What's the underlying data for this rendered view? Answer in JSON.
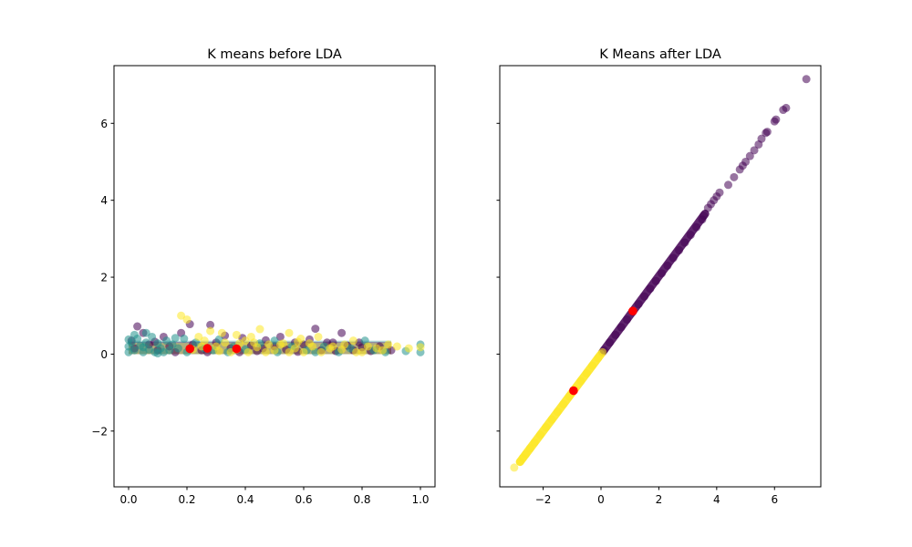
{
  "chart_data": [
    {
      "type": "scatter",
      "title": "K means before LDA",
      "xlabel": "",
      "ylabel": "",
      "xlim": [
        -0.05,
        1.05
      ],
      "ylim": [
        -3.45,
        7.5
      ],
      "xticks": [
        0.0,
        0.2,
        0.4,
        0.6,
        0.8,
        1.0
      ],
      "xtick_labels": [
        "0.0",
        "0.2",
        "0.4",
        "0.6",
        "0.8",
        "1.0"
      ],
      "yticks": [
        -2,
        0,
        2,
        4,
        6
      ],
      "ytick_labels": [
        "−2",
        "0",
        "2",
        "4",
        "6"
      ],
      "grid": false,
      "series": [
        {
          "color": "#440154",
          "values": [
            [
              0.03,
              0.72
            ],
            [
              0.21,
              0.78
            ],
            [
              0.28,
              0.76
            ],
            [
              0.64,
              0.66
            ],
            [
              0.05,
              0.55
            ],
            [
              0.12,
              0.45
            ],
            [
              0.18,
              0.55
            ],
            [
              0.33,
              0.48
            ],
            [
              0.39,
              0.42
            ],
            [
              0.47,
              0.36
            ],
            [
              0.52,
              0.45
            ],
            [
              0.57,
              0.3
            ],
            [
              0.62,
              0.38
            ],
            [
              0.7,
              0.3
            ],
            [
              0.73,
              0.55
            ],
            [
              0.75,
              0.22
            ],
            [
              0.8,
              0.18
            ],
            [
              0.86,
              0.2
            ],
            [
              0.02,
              0.15
            ],
            [
              0.07,
              0.25
            ],
            [
              0.1,
              0.1
            ],
            [
              0.14,
              0.2
            ],
            [
              0.16,
              0.05
            ],
            [
              0.22,
              0.25
            ],
            [
              0.25,
              0.1
            ],
            [
              0.3,
              0.3
            ],
            [
              0.35,
              0.15
            ],
            [
              0.42,
              0.22
            ],
            [
              0.44,
              0.08
            ],
            [
              0.5,
              0.2
            ],
            [
              0.54,
              0.12
            ],
            [
              0.6,
              0.25
            ],
            [
              0.66,
              0.1
            ],
            [
              0.68,
              0.3
            ],
            [
              0.77,
              0.1
            ],
            [
              0.83,
              0.08
            ],
            [
              0.9,
              0.1
            ],
            [
              0.01,
              0.35
            ],
            [
              0.09,
              0.32
            ],
            [
              0.27,
              0.05
            ],
            [
              0.38,
              0.05
            ],
            [
              0.46,
              0.15
            ],
            [
              0.58,
              0.06
            ],
            [
              0.71,
              0.08
            ],
            [
              0.79,
              0.3
            ]
          ]
        },
        {
          "color": "#21918c",
          "values": [
            [
              0.0,
              0.38
            ],
            [
              0.0,
              0.2
            ],
            [
              0.0,
              0.05
            ],
            [
              0.01,
              0.3
            ],
            [
              0.02,
              0.1
            ],
            [
              0.03,
              0.4
            ],
            [
              0.04,
              0.22
            ],
            [
              0.05,
              0.05
            ],
            [
              0.06,
              0.3
            ],
            [
              0.07,
              0.12
            ],
            [
              0.08,
              0.45
            ],
            [
              0.09,
              0.05
            ],
            [
              0.1,
              0.28
            ],
            [
              0.11,
              0.15
            ],
            [
              0.12,
              0.05
            ],
            [
              0.13,
              0.35
            ],
            [
              0.14,
              0.1
            ],
            [
              0.15,
              0.25
            ],
            [
              0.17,
              0.15
            ],
            [
              0.19,
              0.4
            ],
            [
              0.2,
              0.05
            ],
            [
              0.23,
              0.3
            ],
            [
              0.26,
              0.15
            ],
            [
              0.29,
              0.1
            ],
            [
              0.31,
              0.38
            ],
            [
              0.34,
              0.05
            ],
            [
              0.36,
              0.2
            ],
            [
              0.4,
              0.12
            ],
            [
              0.45,
              0.28
            ],
            [
              0.51,
              0.05
            ],
            [
              0.56,
              0.2
            ],
            [
              0.61,
              0.1
            ],
            [
              0.67,
              0.2
            ],
            [
              0.72,
              0.05
            ],
            [
              0.76,
              0.15
            ],
            [
              0.81,
              0.35
            ],
            [
              0.84,
              0.1
            ],
            [
              0.88,
              0.05
            ],
            [
              0.95,
              0.08
            ],
            [
              1.0,
              0.05
            ],
            [
              1.0,
              0.25
            ],
            [
              0.02,
              0.5
            ],
            [
              0.06,
              0.55
            ],
            [
              0.16,
              0.42
            ],
            [
              0.5,
              0.35
            ],
            [
              0.64,
              0.05
            ],
            [
              0.05,
              0.18
            ],
            [
              0.1,
              0.02
            ]
          ]
        },
        {
          "color": "#fde725",
          "values": [
            [
              0.18,
              1.0
            ],
            [
              0.2,
              0.9
            ],
            [
              0.45,
              0.65
            ],
            [
              0.55,
              0.55
            ],
            [
              0.28,
              0.6
            ],
            [
              0.32,
              0.55
            ],
            [
              0.37,
              0.5
            ],
            [
              0.24,
              0.45
            ],
            [
              0.4,
              0.35
            ],
            [
              0.43,
              0.3
            ],
            [
              0.48,
              0.25
            ],
            [
              0.53,
              0.28
            ],
            [
              0.59,
              0.4
            ],
            [
              0.63,
              0.2
            ],
            [
              0.65,
              0.45
            ],
            [
              0.69,
              0.15
            ],
            [
              0.74,
              0.25
            ],
            [
              0.78,
              0.05
            ],
            [
              0.82,
              0.2
            ],
            [
              0.87,
              0.1
            ],
            [
              0.92,
              0.2
            ],
            [
              0.96,
              0.15
            ],
            [
              1.0,
              0.18
            ],
            [
              0.22,
              0.12
            ],
            [
              0.26,
              0.35
            ],
            [
              0.3,
              0.2
            ],
            [
              0.33,
              0.3
            ],
            [
              0.35,
              0.05
            ],
            [
              0.38,
              0.28
            ],
            [
              0.41,
              0.05
            ],
            [
              0.44,
              0.18
            ],
            [
              0.47,
              0.05
            ],
            [
              0.5,
              0.1
            ],
            [
              0.52,
              0.25
            ],
            [
              0.55,
              0.05
            ],
            [
              0.57,
              0.15
            ],
            [
              0.6,
              0.05
            ],
            [
              0.62,
              0.28
            ],
            [
              0.66,
              0.05
            ],
            [
              0.7,
              0.2
            ],
            [
              0.73,
              0.12
            ],
            [
              0.77,
              0.35
            ],
            [
              0.8,
              0.05
            ],
            [
              0.85,
              0.15
            ],
            [
              0.89,
              0.25
            ],
            [
              0.25,
              0.2
            ],
            [
              0.42,
              0.45
            ],
            [
              0.58,
              0.32
            ],
            [
              0.31,
              0.08
            ],
            [
              0.37,
              0.12
            ]
          ]
        }
      ],
      "centroids": {
        "color": "#ff0000",
        "values": [
          [
            0.21,
            0.14
          ],
          [
            0.27,
            0.15
          ],
          [
            0.37,
            0.14
          ]
        ]
      }
    },
    {
      "type": "scatter",
      "title": "K Means after LDA",
      "xlabel": "",
      "ylabel": "",
      "xlim": [
        -3.5,
        7.6
      ],
      "ylim": [
        -3.45,
        7.5
      ],
      "xticks": [
        -2,
        0,
        2,
        4,
        6
      ],
      "xtick_labels": [
        "−2",
        "0",
        "2",
        "4",
        "6"
      ],
      "yticks": [
        -2,
        0,
        2,
        4,
        6
      ],
      "ytick_labels": [
        "",
        "",
        "",
        "",
        ""
      ],
      "grid": false,
      "series": [
        {
          "color": "#440154",
          "values": [
            [
              0.1,
              0.1
            ],
            [
              0.3,
              0.3
            ],
            [
              0.5,
              0.5
            ],
            [
              0.7,
              0.7
            ],
            [
              0.9,
              0.9
            ],
            [
              1.1,
              1.1
            ],
            [
              1.3,
              1.3
            ],
            [
              1.5,
              1.5
            ],
            [
              1.7,
              1.7
            ],
            [
              1.9,
              1.9
            ],
            [
              2.1,
              2.1
            ],
            [
              2.3,
              2.3
            ],
            [
              2.5,
              2.5
            ],
            [
              2.7,
              2.7
            ],
            [
              2.9,
              2.9
            ],
            [
              3.1,
              3.1
            ],
            [
              3.3,
              3.3
            ],
            [
              3.5,
              3.5
            ],
            [
              3.55,
              3.6
            ],
            [
              3.7,
              3.8
            ],
            [
              3.8,
              3.9
            ],
            [
              3.9,
              4.0
            ],
            [
              4.0,
              4.1
            ],
            [
              4.1,
              4.2
            ],
            [
              4.4,
              4.4
            ],
            [
              4.6,
              4.6
            ],
            [
              4.8,
              4.8
            ],
            [
              4.9,
              4.9
            ],
            [
              5.0,
              5.0
            ],
            [
              5.15,
              5.15
            ],
            [
              5.3,
              5.3
            ],
            [
              5.45,
              5.45
            ],
            [
              5.55,
              5.6
            ],
            [
              5.7,
              5.75
            ],
            [
              5.75,
              5.78
            ],
            [
              6.0,
              6.05
            ],
            [
              6.05,
              6.1
            ],
            [
              6.3,
              6.35
            ],
            [
              6.4,
              6.4
            ],
            [
              7.1,
              7.15
            ]
          ]
        },
        {
          "color": "#fde725",
          "values": [
            [
              0.05,
              0.05
            ],
            [
              -0.1,
              -0.1
            ],
            [
              -0.3,
              -0.3
            ],
            [
              -0.5,
              -0.5
            ],
            [
              -0.7,
              -0.7
            ],
            [
              -0.9,
              -0.9
            ],
            [
              -1.1,
              -1.1
            ],
            [
              -1.3,
              -1.3
            ],
            [
              -1.5,
              -1.5
            ],
            [
              -1.7,
              -1.7
            ],
            [
              -1.9,
              -1.9
            ],
            [
              -2.1,
              -2.1
            ],
            [
              -2.3,
              -2.3
            ],
            [
              -2.45,
              -2.45
            ],
            [
              -2.6,
              -2.6
            ],
            [
              -2.7,
              -2.7
            ],
            [
              -2.8,
              -2.8
            ],
            [
              -3.0,
              -2.95
            ]
          ]
        }
      ],
      "centroids": {
        "color": "#ff0000",
        "values": [
          [
            1.1,
            1.12
          ],
          [
            -0.95,
            -0.95
          ]
        ]
      }
    }
  ]
}
